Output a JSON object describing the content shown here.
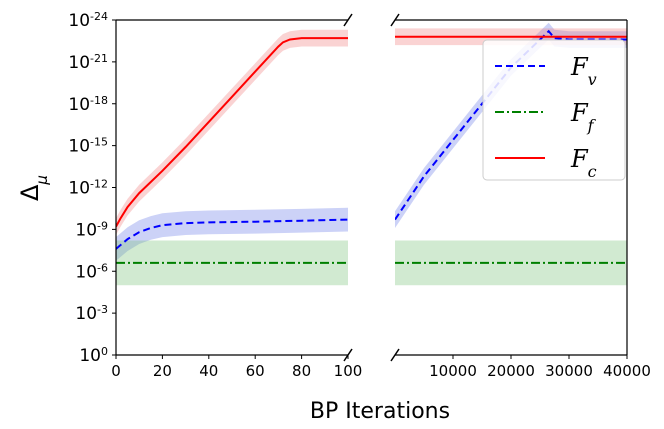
{
  "chart_data": {
    "type": "line",
    "yscale": "log10",
    "ylabel": "Δ",
    "ylabel_sub": "μ",
    "xlabel": "BP Iterations",
    "ylim_exp": [
      -24,
      0
    ],
    "yticks_exp": [
      0,
      -3,
      -6,
      -9,
      -12,
      -15,
      -18,
      -21,
      -24
    ],
    "ytick_base": "10",
    "panels": [
      {
        "id": "left",
        "xlim": [
          0,
          100
        ],
        "xticks": [
          0,
          20,
          40,
          60,
          80,
          100
        ],
        "xticklabels": [
          "0",
          "20",
          "40",
          "60",
          "80",
          "100"
        ]
      },
      {
        "id": "right",
        "xlim": [
          0,
          40000
        ],
        "xticks": [
          10000,
          20000,
          30000,
          40000
        ],
        "xticklabels": [
          "10000",
          "20000",
          "30000",
          "40000"
        ]
      }
    ],
    "series": [
      {
        "name": "F_v",
        "label_main": "F",
        "label_sub": "v",
        "color": "#0000ff",
        "band_color": "#6d7fe8",
        "dash": "7,4",
        "left": {
          "x": [
            0,
            5,
            10,
            15,
            20,
            30,
            40,
            60,
            80,
            100
          ],
          "y": [
            -7.6,
            -8.3,
            -8.8,
            -9.1,
            -9.3,
            -9.45,
            -9.5,
            -9.55,
            -9.62,
            -9.7
          ],
          "band": 0.85
        },
        "right": {
          "x": [
            0,
            5000,
            10000,
            15000,
            20000,
            26500,
            27500,
            30000,
            35000,
            40000
          ],
          "y": [
            -9.7,
            -12.8,
            -15.4,
            -18.0,
            -20.6,
            -23.2,
            -22.7,
            -22.6,
            -22.6,
            -22.6
          ],
          "band": 0.6
        }
      },
      {
        "name": "F_f",
        "label_main": "F",
        "label_sub": "f",
        "color": "#008000",
        "band_color": "#7cc47c",
        "dash": "9,3,2,3",
        "left": {
          "x": [
            0,
            100
          ],
          "y": [
            -6.6,
            -6.6
          ],
          "band": 1.6
        },
        "right": {
          "x": [
            0,
            40000
          ],
          "y": [
            -6.6,
            -6.6
          ],
          "band": 1.6
        }
      },
      {
        "name": "F_c",
        "label_main": "F",
        "label_sub": "c",
        "color": "#ff0000",
        "band_color": "#f08080",
        "dash": "",
        "left": {
          "x": [
            0,
            2,
            5,
            10,
            20,
            30,
            40,
            50,
            60,
            70,
            72,
            75,
            80,
            100
          ],
          "y": [
            -9.2,
            -9.8,
            -10.6,
            -11.6,
            -13.2,
            -14.9,
            -16.7,
            -18.5,
            -20.3,
            -22.1,
            -22.4,
            -22.6,
            -22.7,
            -22.7
          ],
          "band": 0.6
        },
        "right": {
          "x": [
            0,
            40000
          ],
          "y": [
            -22.8,
            -22.8
          ],
          "band": 0.6
        }
      }
    ],
    "legend": "top-right"
  }
}
